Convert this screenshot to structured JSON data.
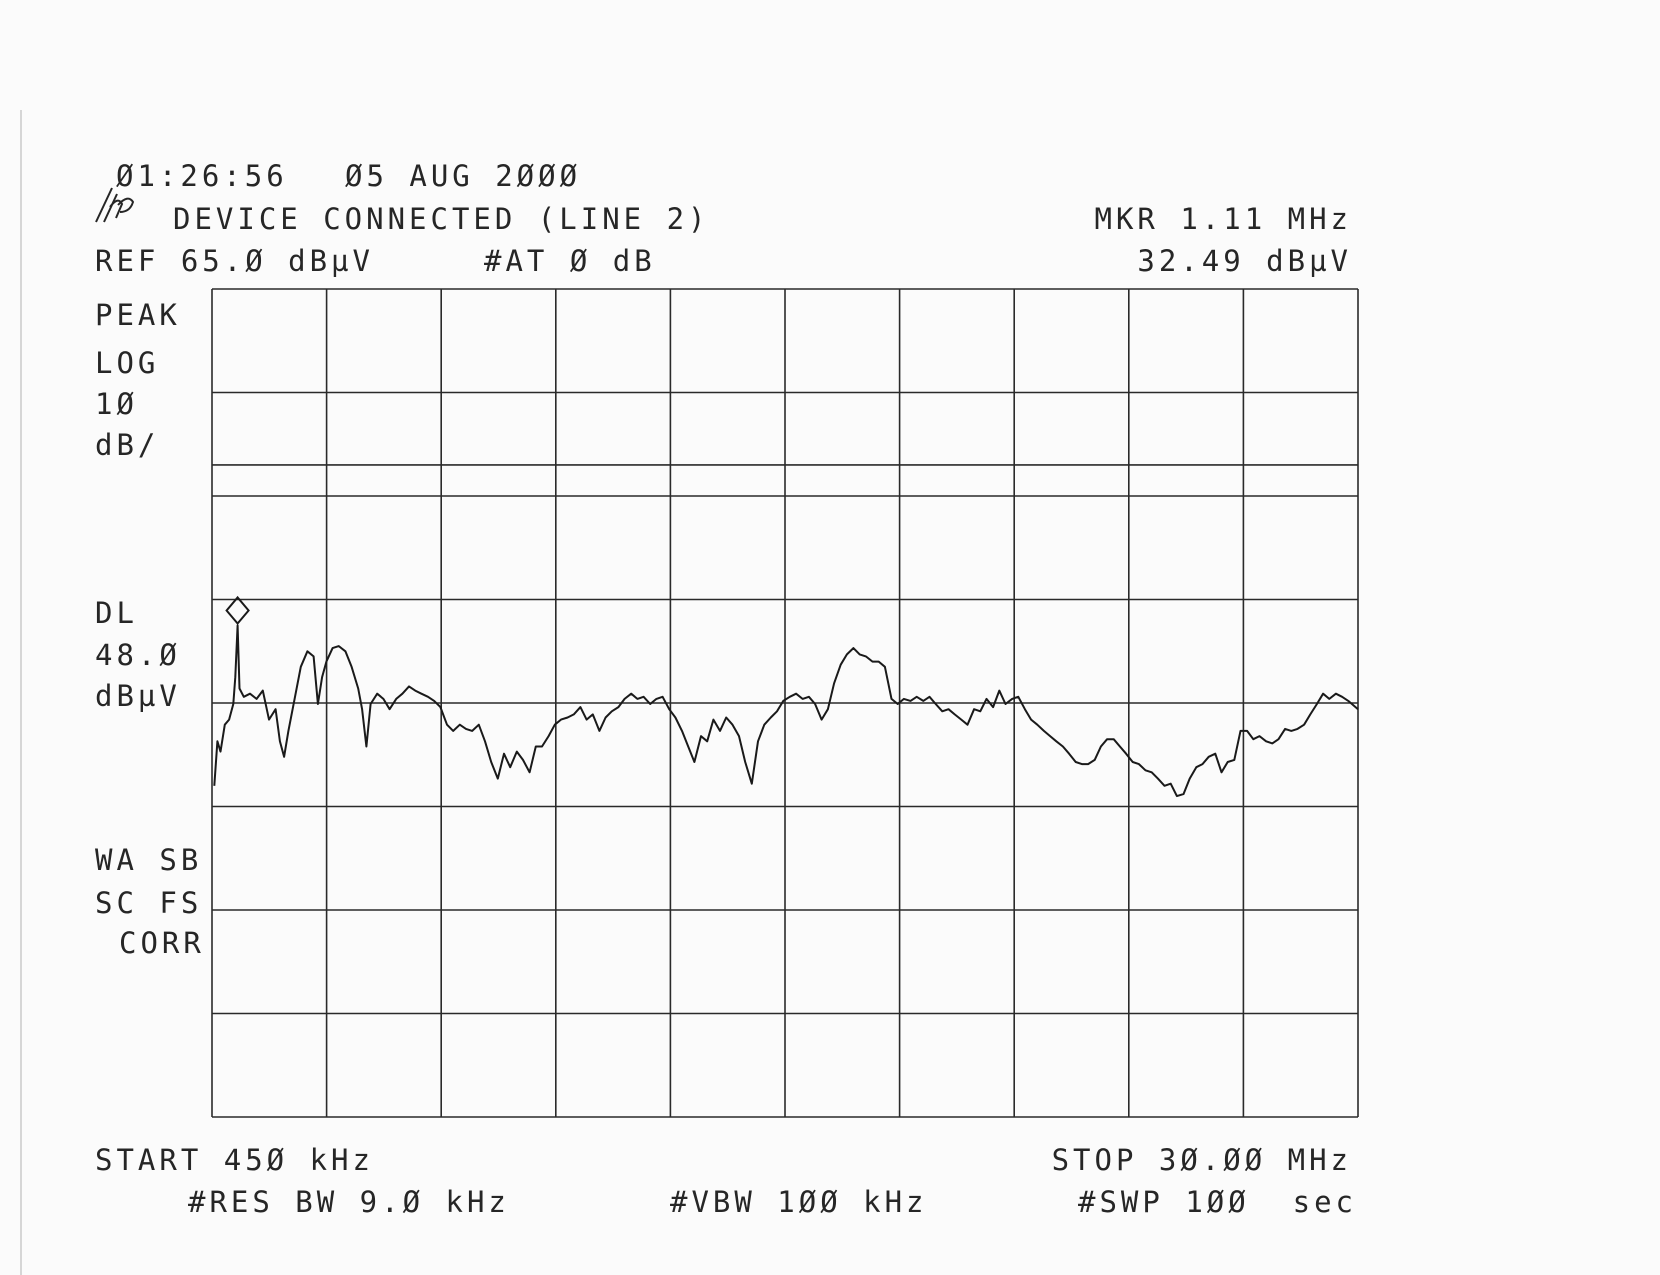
{
  "chart_data": {
    "type": "line",
    "header": {
      "time": "Ø1:26:56",
      "date": "Ø5 AUG 2ØØØ",
      "title": "DEVICE CONNECTED (LINE 2)",
      "marker_freq": "MKR 1.11 MHz",
      "marker_level": "32.49 dBµV",
      "ref": "REF 65.Ø dBµV",
      "atten": "#AT Ø dB"
    },
    "side_labels": [
      "PEAK",
      "LOG",
      "1Ø",
      "dB/",
      "DL",
      "48.Ø",
      "dBµV",
      "WA SB",
      "SC FS",
      "CORR"
    ],
    "footer": {
      "start": "START 45Ø kHz",
      "stop": "STOP 3Ø.ØØ MHz",
      "rbw": "#RES BW 9.Ø kHz",
      "vbw": "#VBW 1ØØ kHz",
      "sweep": "#SWP 1ØØ  sec"
    },
    "x": [
      0.51,
      0.59,
      0.67,
      0.78,
      0.89,
      1.0,
      1.05,
      1.11,
      1.16,
      1.27,
      1.43,
      1.6,
      1.76,
      1.92,
      2.09,
      2.2,
      2.31,
      2.42,
      2.58,
      2.74,
      2.91,
      3.07,
      3.18,
      3.29,
      3.4,
      3.56,
      3.72,
      3.89,
      4.05,
      4.22,
      4.32,
      4.43,
      4.54,
      4.71,
      4.87,
      5.03,
      5.2,
      5.36,
      5.53,
      5.69,
      5.85,
      6.02,
      6.18,
      6.34,
      6.51,
      6.67,
      6.84,
      7.0,
      7.16,
      7.33,
      7.49,
      7.65,
      7.82,
      7.98,
      8.14,
      8.31,
      8.47,
      8.64,
      8.8,
      8.96,
      9.13,
      9.29,
      9.45,
      9.62,
      9.78,
      9.95,
      10.11,
      10.27,
      10.44,
      10.6,
      10.76,
      10.93,
      11.09,
      11.26,
      11.42,
      11.58,
      11.75,
      11.91,
      12.07,
      12.24,
      12.4,
      12.57,
      12.73,
      12.89,
      13.06,
      13.22,
      13.38,
      13.55,
      13.71,
      13.87,
      14.04,
      14.2,
      14.37,
      14.53,
      14.69,
      14.86,
      15.02,
      15.18,
      15.35,
      15.51,
      15.68,
      15.84,
      16.0,
      16.17,
      16.33,
      16.49,
      16.66,
      16.82,
      16.99,
      17.15,
      17.31,
      17.48,
      17.64,
      17.8,
      17.97,
      18.13,
      18.29,
      18.46,
      18.62,
      18.79,
      18.95,
      19.11,
      19.28,
      19.44,
      19.6,
      19.77,
      19.93,
      20.1,
      20.26,
      20.42,
      20.59,
      20.75,
      20.91,
      21.08,
      21.24,
      21.41,
      21.57,
      21.73,
      21.9,
      22.06,
      22.22,
      22.39,
      22.55,
      22.72,
      22.88,
      23.04,
      23.21,
      23.37,
      23.53,
      23.7,
      23.86,
      24.02,
      24.19,
      24.35,
      24.52,
      24.68,
      24.84,
      25.01,
      25.17,
      25.33,
      25.5,
      25.66,
      25.83,
      25.99,
      26.15,
      26.32,
      26.48,
      26.64,
      26.81,
      26.97,
      27.14,
      27.3,
      27.46,
      27.63,
      27.79,
      27.95,
      28.12,
      28.28,
      28.44,
      28.61,
      28.77,
      28.94,
      29.1,
      29.26,
      29.43,
      29.59,
      29.75,
      30.0
    ],
    "values": [
      17.0,
      21.3,
      20.3,
      22.9,
      23.4,
      24.9,
      27.5,
      32.5,
      26.4,
      25.6,
      25.9,
      25.4,
      26.2,
      23.4,
      24.4,
      21.3,
      19.8,
      22.3,
      25.4,
      28.5,
      30.0,
      29.5,
      24.9,
      27.5,
      29.0,
      30.3,
      30.5,
      30.0,
      28.5,
      26.4,
      24.4,
      20.8,
      24.9,
      25.9,
      25.4,
      24.4,
      25.4,
      25.9,
      26.6,
      26.2,
      25.9,
      25.6,
      25.2,
      24.6,
      22.9,
      22.3,
      22.9,
      22.5,
      22.3,
      22.9,
      21.3,
      19.3,
      17.7,
      20.1,
      18.8,
      20.3,
      19.5,
      18.3,
      20.8,
      20.8,
      21.8,
      22.9,
      23.4,
      23.6,
      23.9,
      24.6,
      23.4,
      23.9,
      22.3,
      23.6,
      24.2,
      24.6,
      25.4,
      25.9,
      25.4,
      25.6,
      24.9,
      25.4,
      25.6,
      24.4,
      23.6,
      22.3,
      20.8,
      19.3,
      21.8,
      21.3,
      23.4,
      22.3,
      23.6,
      22.9,
      21.8,
      19.3,
      17.2,
      21.3,
      22.9,
      23.6,
      24.2,
      25.2,
      25.6,
      25.9,
      25.4,
      25.6,
      24.9,
      23.4,
      24.4,
      26.9,
      28.7,
      29.7,
      30.3,
      29.7,
      29.5,
      29.0,
      29.0,
      28.5,
      25.4,
      24.9,
      25.4,
      25.2,
      25.6,
      25.2,
      25.6,
      24.9,
      24.2,
      24.4,
      23.9,
      23.4,
      22.9,
      24.4,
      24.2,
      25.4,
      24.6,
      26.2,
      24.9,
      25.4,
      25.6,
      24.4,
      23.4,
      22.9,
      22.3,
      21.8,
      21.3,
      20.8,
      20.1,
      19.3,
      19.1,
      19.1,
      19.5,
      20.8,
      21.5,
      21.5,
      20.8,
      20.1,
      19.3,
      19.1,
      18.5,
      18.3,
      17.7,
      17.0,
      17.2,
      16.0,
      16.2,
      17.7,
      18.8,
      19.1,
      19.8,
      20.1,
      18.3,
      19.3,
      19.5,
      22.3,
      22.3,
      21.5,
      21.8,
      21.3,
      21.1,
      21.5,
      22.5,
      22.3,
      22.5,
      22.9,
      23.9,
      24.9,
      25.9,
      25.4,
      25.9,
      25.6,
      25.2,
      24.4
    ],
    "color": "#1a1a1a",
    "xlim": [
      0.45,
      30
    ],
    "ylim": [
      -15,
      65
    ],
    "xticks": [
      0.45,
      3.405,
      6.36,
      9.315,
      12.27,
      15.225,
      18.18,
      21.135,
      24.09,
      27.045,
      30
    ],
    "yticks": [
      65,
      55,
      45,
      35,
      25,
      15,
      5,
      -5,
      -15
    ],
    "grid": true,
    "display_line": 48,
    "marker": {
      "x": 1.11,
      "y": 32.49
    }
  }
}
